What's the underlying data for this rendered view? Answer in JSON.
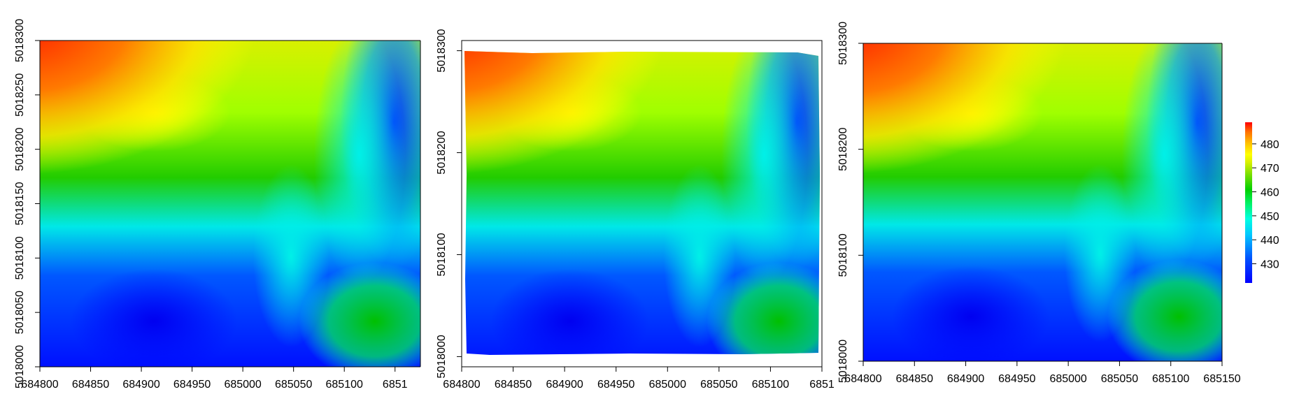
{
  "chart_data": [
    {
      "type": "heatmap",
      "title": "",
      "xlabel": "",
      "ylabel": "",
      "xlim": [
        684800,
        685175
      ],
      "ylim": [
        5018000,
        5018300
      ],
      "x_ticks": [
        "684800",
        "684850",
        "684900",
        "684950",
        "685000",
        "685050",
        "685100",
        "6851"
      ],
      "y_ticks": [
        "5018000",
        "5018050",
        "5018100",
        "5018150",
        "5018200",
        "5018250",
        "5018300"
      ],
      "grid": false
    },
    {
      "type": "heatmap",
      "title": "",
      "xlabel": "",
      "ylabel": "",
      "xlim": [
        684800,
        685150
      ],
      "ylim": [
        5017990,
        5018310
      ],
      "x_ticks": [
        "684800",
        "684850",
        "684900",
        "684950",
        "685000",
        "685050",
        "685100",
        "6851"
      ],
      "y_ticks": [
        "5018000",
        "5018100",
        "5018200",
        "5018300"
      ],
      "grid": false
    },
    {
      "type": "heatmap",
      "title": "",
      "xlabel": "",
      "ylabel": "",
      "xlim": [
        684800,
        685150
      ],
      "ylim": [
        5018000,
        5018300
      ],
      "x_ticks": [
        "684800",
        "684850",
        "684900",
        "684950",
        "685000",
        "685050",
        "685100",
        "685150"
      ],
      "y_ticks": [
        "5018000",
        "5018100",
        "5018200",
        "5018300"
      ],
      "grid": false
    }
  ],
  "legend": {
    "ticks": [
      "430",
      "440",
      "450",
      "460",
      "470",
      "480"
    ],
    "range": [
      422,
      489
    ],
    "colors": [
      "#0000ff",
      "#0050ff",
      "#00c8ff",
      "#00ffe0",
      "#00f060",
      "#00d000",
      "#7fe000",
      "#d8f000",
      "#ffff00",
      "#ffc000",
      "#ff7000",
      "#ff0000"
    ]
  }
}
